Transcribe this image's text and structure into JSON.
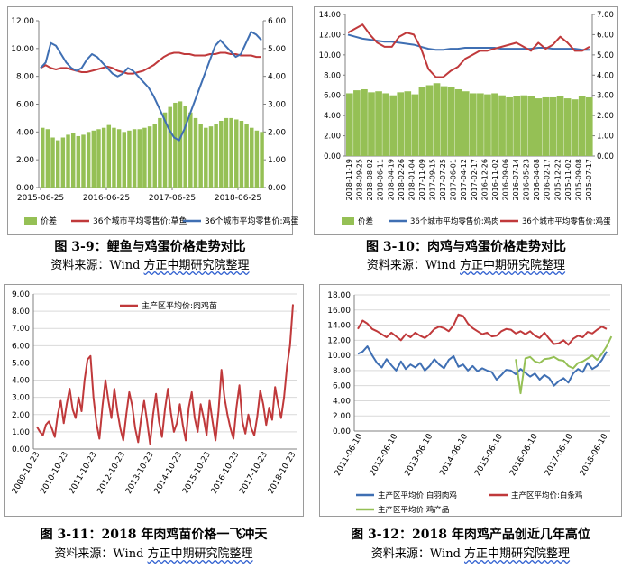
{
  "charts": [
    {
      "caption": "图 3-9：鲤鱼与鸡蛋价格走势对比",
      "source_prefix": "资料来源：Wind ",
      "source_org": "方正中期研究院整理"
    },
    {
      "caption": "图 3-10：肉鸡与鸡蛋价格走势对比",
      "source_prefix": "资料来源：Wind ",
      "source_org": "方正中期研究院整理"
    },
    {
      "caption": "图 3-11：2018 年肉鸡苗价格一飞冲天",
      "source_prefix": "资料来源：Wind ",
      "source_org": "方正中期研究院整理"
    },
    {
      "caption": "图 3-12：2018 年肉鸡产品创近几年高位",
      "source_prefix": "资料来源：Wind ",
      "source_org": "方正中期研究院整理"
    }
  ],
  "colors": {
    "red": "#c0393b",
    "blue": "#3f6fb3",
    "green": "#95c055",
    "axis": "#808080",
    "grid": "#d9d9d9"
  },
  "chart_data": [
    {
      "type": "line",
      "secondary_chart": "bar",
      "x_ticks": [
        "2015-06-25",
        "2016-06-25",
        "2017-06-25",
        "2018-06-25"
      ],
      "y_left_ticks": [
        "0.00",
        "2.00",
        "4.00",
        "6.00",
        "8.00",
        "10.00",
        "12.00"
      ],
      "y_right_ticks": [
        "0.00",
        "1.00",
        "2.00",
        "3.00",
        "4.00",
        "5.00",
        "6.00"
      ],
      "ylim_left": [
        0,
        12
      ],
      "ylim_right": [
        0,
        6
      ],
      "legend": [
        "价差",
        "36个城市平均零售价:草鱼",
        "36个城市平均零售价:鸡蛋"
      ],
      "legend_position": "bottom",
      "series": [
        {
          "name": "价差",
          "kind": "bar",
          "axis": "left",
          "values": [
            4.3,
            4.2,
            3.6,
            3.4,
            3.6,
            3.8,
            3.9,
            3.7,
            3.8,
            4.0,
            4.1,
            4.2,
            4.3,
            4.5,
            4.3,
            4.2,
            4.0,
            4.1,
            4.2,
            4.2,
            4.3,
            4.4,
            4.6,
            5.0,
            5.4,
            5.8,
            6.1,
            6.2,
            5.9,
            5.4,
            5.0,
            4.6,
            4.3,
            4.4,
            4.6,
            4.8,
            5.0,
            5.0,
            4.9,
            4.8,
            4.6,
            4.3,
            4.1,
            4.0
          ]
        },
        {
          "name": "36个城市平均零售价:草鱼",
          "kind": "line",
          "axis": "left",
          "values": [
            8.6,
            8.8,
            8.6,
            8.5,
            8.6,
            8.6,
            8.5,
            8.4,
            8.3,
            8.3,
            8.4,
            8.5,
            8.6,
            8.7,
            8.6,
            8.4,
            8.3,
            8.2,
            8.2,
            8.3,
            8.4,
            8.6,
            8.8,
            9.1,
            9.4,
            9.6,
            9.7,
            9.7,
            9.6,
            9.6,
            9.5,
            9.5,
            9.5,
            9.6,
            9.6,
            9.7,
            9.7,
            9.6,
            9.6,
            9.5,
            9.5,
            9.5,
            9.4,
            9.4
          ]
        },
        {
          "name": "36个城市平均零售价:鸡蛋",
          "kind": "line",
          "axis": "right",
          "values": [
            4.3,
            4.5,
            5.2,
            5.1,
            4.8,
            4.5,
            4.3,
            4.2,
            4.3,
            4.6,
            4.8,
            4.7,
            4.5,
            4.3,
            4.1,
            4.0,
            4.1,
            4.3,
            4.2,
            4.0,
            3.8,
            3.6,
            3.3,
            2.9,
            2.5,
            2.1,
            1.8,
            1.7,
            2.1,
            2.6,
            3.1,
            3.6,
            4.1,
            4.6,
            5.1,
            5.3,
            5.1,
            4.9,
            4.7,
            4.8,
            5.2,
            5.6,
            5.5,
            5.3
          ]
        }
      ]
    },
    {
      "type": "line",
      "secondary_chart": "bar",
      "x_ticks": [
        "2018-11-19",
        "2018-09-25",
        "2018-08-02",
        "2018-06-11",
        "2018-04-19",
        "2018-02-26",
        "2018-01-04",
        "2017-11-09",
        "2017-09-15",
        "2017-07-25",
        "2017-06-01",
        "2017-04-12",
        "2017-02-17",
        "2016-12-26",
        "2016-11-02",
        "2016-09-06",
        "2016-07-14",
        "2016-05-23",
        "2016-04-08",
        "2016-02-17",
        "2015-12-22",
        "2015-11-02",
        "2015-09-08",
        "2015-07-17"
      ],
      "y_left_ticks": [
        "0.00",
        "2.00",
        "4.00",
        "6.00",
        "8.00",
        "10.00",
        "12.00",
        "14.00"
      ],
      "y_right_ticks": [
        "0.00",
        "1.00",
        "2.00",
        "3.00",
        "4.00",
        "5.00",
        "6.00",
        "7.00"
      ],
      "ylim_left": [
        0,
        14
      ],
      "ylim_right": [
        0,
        7
      ],
      "legend": [
        "价差",
        "36个城市平均零售价:鸡肉",
        "36个城市平均零售价:鸡蛋"
      ],
      "legend_position": "bottom",
      "series": [
        {
          "name": "价差",
          "kind": "bar",
          "axis": "left",
          "values": [
            6.2,
            6.5,
            6.6,
            6.3,
            6.4,
            6.2,
            6.0,
            6.3,
            6.4,
            6.1,
            6.8,
            7.0,
            7.2,
            6.9,
            6.8,
            6.6,
            6.4,
            6.2,
            6.2,
            6.1,
            6.2,
            6.0,
            5.8,
            5.9,
            6.0,
            5.9,
            5.7,
            5.8,
            5.8,
            5.9,
            5.7,
            5.6,
            5.9,
            5.8
          ]
        },
        {
          "name": "36个城市平均零售价:鸡肉",
          "kind": "line",
          "axis": "left",
          "values": [
            12.0,
            11.8,
            11.6,
            11.5,
            11.4,
            11.3,
            11.3,
            11.2,
            11.1,
            11.0,
            10.8,
            10.6,
            10.5,
            10.5,
            10.6,
            10.6,
            10.7,
            10.7,
            10.7,
            10.7,
            10.7,
            10.6,
            10.6,
            10.6,
            10.6,
            10.6,
            10.7,
            10.7,
            10.6,
            10.6,
            10.6,
            10.6,
            10.5,
            10.5
          ]
        },
        {
          "name": "36个城市平均零售价:鸡蛋",
          "kind": "line",
          "axis": "right",
          "values": [
            6.1,
            6.3,
            6.5,
            6.0,
            5.6,
            5.4,
            5.4,
            5.9,
            6.1,
            6.0,
            5.3,
            4.3,
            3.9,
            3.9,
            4.2,
            4.4,
            4.8,
            5.0,
            5.2,
            5.2,
            5.3,
            5.4,
            5.5,
            5.6,
            5.4,
            5.2,
            5.6,
            5.3,
            5.5,
            5.9,
            5.6,
            5.2,
            5.2,
            5.4
          ]
        }
      ]
    },
    {
      "type": "line",
      "x_ticks": [
        "2009-10-23",
        "2010-10-23",
        "2011-10-23",
        "2012-10-23",
        "2013-10-23",
        "2014-10-23",
        "2015-10-23",
        "2016-10-23",
        "2017-10-23",
        "2018-10-23"
      ],
      "y_ticks": [
        "0.00",
        "1.00",
        "2.00",
        "3.00",
        "4.00",
        "5.00",
        "6.00",
        "7.00",
        "8.00",
        "9.00"
      ],
      "ylim": [
        0,
        9
      ],
      "legend": [
        "主产区平均价:肉鸡苗"
      ],
      "legend_position": "top",
      "series": [
        {
          "name": "主产区平均价:肉鸡苗",
          "values": [
            1.3,
            1.0,
            0.8,
            1.4,
            1.6,
            1.2,
            0.7,
            2.0,
            2.8,
            1.5,
            2.6,
            3.5,
            2.3,
            1.8,
            3.0,
            2.2,
            4.0,
            5.2,
            5.4,
            3.0,
            1.5,
            0.6,
            2.5,
            4.0,
            2.8,
            1.8,
            3.5,
            2.2,
            1.2,
            0.5,
            2.0,
            3.3,
            2.5,
            1.2,
            0.4,
            1.8,
            2.8,
            1.6,
            0.3,
            2.0,
            3.2,
            1.6,
            0.7,
            2.3,
            3.5,
            2.1,
            1.0,
            1.5,
            2.6,
            1.4,
            0.5,
            2.4,
            3.3,
            1.8,
            1.0,
            2.6,
            1.8,
            0.8,
            2.8,
            1.6,
            0.5,
            2.2,
            4.6,
            3.0,
            2.0,
            1.2,
            0.6,
            2.4,
            3.7,
            1.6,
            0.9,
            2.0,
            1.2,
            0.8,
            1.9,
            3.4,
            2.6,
            1.4,
            2.4,
            1.7,
            3.6,
            2.6,
            1.8,
            3.0,
            4.8,
            6.0,
            8.4
          ]
        }
      ]
    },
    {
      "type": "line",
      "x_ticks": [
        "2011-06-10",
        "2012-06-10",
        "2013-06-10",
        "2014-06-10",
        "2015-06-10",
        "2016-06-10",
        "2017-06-10",
        "2018-06-10"
      ],
      "y_ticks": [
        "0.00",
        "2.00",
        "4.00",
        "6.00",
        "8.00",
        "10.00",
        "12.00",
        "14.00",
        "16.00",
        "18.00"
      ],
      "ylim": [
        0,
        18
      ],
      "legend": [
        "主产区平均价:白羽肉鸡",
        "主产区平均价:白条鸡",
        "主产区平均价:鸡产品"
      ],
      "legend_position": "bottom",
      "series": [
        {
          "name": "主产区平均价:白羽肉鸡",
          "color": "blue",
          "values": [
            10.2,
            10.5,
            11.2,
            10.0,
            9.0,
            8.4,
            9.5,
            8.7,
            8.0,
            9.2,
            8.2,
            8.8,
            8.4,
            9.0,
            8.0,
            8.6,
            9.5,
            8.8,
            8.3,
            9.4,
            9.9,
            8.5,
            8.8,
            8.0,
            8.6,
            7.9,
            8.3,
            8.0,
            7.8,
            6.8,
            7.4,
            8.1,
            8.0,
            7.5,
            8.2,
            7.7,
            7.2,
            7.6,
            6.8,
            7.4,
            7.0,
            6.0,
            6.6,
            7.0,
            6.4,
            7.6,
            8.2,
            7.8,
            9.0,
            8.2,
            8.6,
            9.4,
            10.5
          ]
        },
        {
          "name": "主产区平均价:白条鸡",
          "color": "red",
          "values": [
            13.5,
            14.6,
            14.2,
            13.5,
            13.2,
            12.8,
            12.4,
            13.0,
            12.5,
            12.0,
            12.8,
            12.4,
            13.0,
            12.6,
            12.3,
            12.8,
            13.5,
            13.8,
            13.6,
            13.2,
            14.0,
            15.4,
            15.2,
            14.2,
            13.6,
            13.2,
            12.8,
            13.0,
            12.5,
            12.6,
            13.2,
            13.5,
            13.4,
            12.9,
            13.2,
            12.8,
            13.2,
            12.6,
            12.3,
            13.0,
            12.2,
            11.5,
            11.6,
            12.0,
            11.4,
            12.2,
            12.6,
            12.4,
            13.1,
            12.9,
            13.4,
            13.8,
            13.5
          ]
        },
        {
          "name": "主产区平均价:鸡产品",
          "color": "green",
          "start_index": 33,
          "values": [
            9.5,
            5.0,
            9.6,
            9.8,
            9.2,
            9.0,
            9.5,
            9.6,
            9.8,
            9.4,
            9.3,
            8.6,
            8.3,
            9.0,
            9.2,
            9.6,
            10.0,
            9.4,
            10.2,
            11.2,
            12.5
          ]
        }
      ]
    }
  ]
}
